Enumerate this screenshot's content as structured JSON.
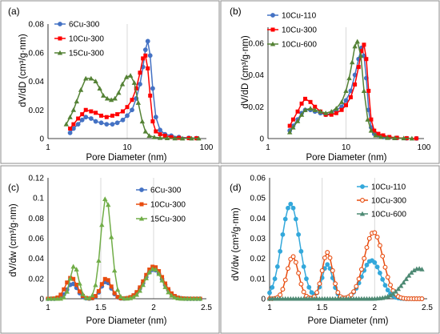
{
  "panels": [
    {
      "label": "(a)",
      "ylabel": "dV/dD (cm³/g·nm)",
      "xlabel": "Pore Diameter (nm)",
      "x_ticks": [
        "1",
        "10",
        "100"
      ],
      "y_ticks": [
        "0",
        "0.02",
        "0.04",
        "0.06",
        "0.08"
      ]
    },
    {
      "label": "(b)",
      "ylabel": "dV/dD (cm³/g·nm)",
      "xlabel": "Pore Diameter (nm)",
      "x_ticks": [
        "1",
        "10",
        "100"
      ],
      "y_ticks": [
        "0",
        "0.02",
        "0.04",
        "0.06"
      ]
    },
    {
      "label": "(c)",
      "ylabel": "dV/dw (cm³/g·nm)",
      "xlabel": "Pore Diameter (nm)",
      "x_ticks": [
        "1",
        "1.5",
        "2",
        "2.5"
      ],
      "y_ticks": [
        "0",
        "0.02",
        "0.04",
        "0.06",
        "0.08",
        "0.1",
        "0.12"
      ]
    },
    {
      "label": "(d)",
      "ylabel": "dV/dw (cm³/g·nm)",
      "xlabel": "Pore Diameter (nm)",
      "x_ticks": [
        "1",
        "1.5",
        "2",
        "2.5"
      ],
      "y_ticks": [
        "0",
        "0.01",
        "0.02",
        "0.03",
        "0.04",
        "0.05",
        "0.06"
      ]
    }
  ],
  "chart_data": [
    {
      "type": "line",
      "x_scale": "log",
      "xlim": [
        1,
        100
      ],
      "ylim": [
        0,
        0.08
      ],
      "grid": "vertical",
      "legend_position": "top-left",
      "series": [
        {
          "name": "6Cu-300",
          "color": "#4472C4",
          "marker": "circle",
          "x": [
            1.9,
            2.1,
            2.4,
            2.7,
            3.0,
            3.5,
            4.0,
            4.7,
            5.5,
            6.5,
            7.5,
            8.8,
            10,
            11.5,
            13,
            14.5,
            15.8,
            17,
            18.2,
            19.5,
            21,
            23,
            26,
            30,
            36,
            45,
            60,
            75
          ],
          "y": [
            0.004,
            0.007,
            0.01,
            0.013,
            0.015,
            0.014,
            0.012,
            0.011,
            0.01,
            0.01,
            0.011,
            0.013,
            0.016,
            0.02,
            0.028,
            0.038,
            0.05,
            0.062,
            0.068,
            0.058,
            0.035,
            0.015,
            0.006,
            0.003,
            0.002,
            0.001,
            0.0005,
            0.0003
          ]
        },
        {
          "name": "10Cu-300",
          "color": "#FF0000",
          "marker": "square",
          "x": [
            1.9,
            2.1,
            2.4,
            2.7,
            3.0,
            3.5,
            4.0,
            4.7,
            5.5,
            6.5,
            7.5,
            8.8,
            10,
            11.5,
            13,
            14.5,
            15.8,
            17,
            18.2,
            19.5,
            21,
            23,
            26,
            30,
            36,
            45,
            60,
            75
          ],
          "y": [
            0.007,
            0.01,
            0.014,
            0.017,
            0.02,
            0.019,
            0.018,
            0.016,
            0.015,
            0.016,
            0.017,
            0.019,
            0.022,
            0.027,
            0.035,
            0.046,
            0.056,
            0.058,
            0.049,
            0.03,
            0.012,
            0.005,
            0.003,
            0.002,
            0.001,
            0.0005,
            0.0003,
            0.0002
          ]
        },
        {
          "name": "15Cu-300",
          "color": "#548235",
          "marker": "triangle",
          "x": [
            1.7,
            1.9,
            2.1,
            2.3,
            2.6,
            3.0,
            3.5,
            4.0,
            4.5,
            5.0,
            5.6,
            6.3,
            7.0,
            7.8,
            8.7,
            9.8,
            11,
            12.3,
            13.8,
            15.5,
            17,
            19,
            22,
            26,
            32,
            40,
            50,
            65,
            80
          ],
          "y": [
            0.01,
            0.015,
            0.02,
            0.026,
            0.034,
            0.042,
            0.042,
            0.04,
            0.035,
            0.03,
            0.028,
            0.027,
            0.028,
            0.032,
            0.038,
            0.043,
            0.044,
            0.039,
            0.025,
            0.012,
            0.005,
            0.002,
            0.001,
            0.0005,
            0.0003,
            0.0002,
            0.0001,
            0.0001,
            0.0001
          ]
        }
      ]
    },
    {
      "type": "line",
      "x_scale": "log",
      "xlim": [
        1,
        100
      ],
      "ylim": [
        0,
        0.07
      ],
      "grid": "vertical",
      "legend_position": "top-left",
      "series": [
        {
          "name": "10Cu-110",
          "color": "#4472C4",
          "marker": "circle",
          "x": [
            1.9,
            2.1,
            2.4,
            2.7,
            3.0,
            3.5,
            4.0,
            4.7,
            5.5,
            6.5,
            7.5,
            8.8,
            10,
            11.5,
            13,
            14.5,
            15.8,
            17,
            18.2,
            19.5,
            21,
            23,
            26,
            30,
            36,
            45,
            60,
            80
          ],
          "y": [
            0.005,
            0.008,
            0.012,
            0.016,
            0.018,
            0.018,
            0.017,
            0.016,
            0.015,
            0.016,
            0.018,
            0.02,
            0.024,
            0.03,
            0.04,
            0.05,
            0.057,
            0.052,
            0.038,
            0.018,
            0.007,
            0.003,
            0.002,
            0.001,
            0.0007,
            0.0004,
            0.0002,
            0.0001
          ]
        },
        {
          "name": "10Cu-300",
          "color": "#FF0000",
          "marker": "square",
          "x": [
            1.9,
            2.1,
            2.4,
            2.7,
            3.0,
            3.5,
            4.0,
            4.7,
            5.5,
            6.5,
            7.5,
            8.8,
            10,
            11.5,
            13,
            14.5,
            15.8,
            17,
            18.2,
            19.5,
            21,
            23,
            26,
            30,
            36,
            45,
            60,
            80
          ],
          "y": [
            0.008,
            0.012,
            0.017,
            0.022,
            0.025,
            0.023,
            0.02,
            0.017,
            0.015,
            0.015,
            0.016,
            0.018,
            0.021,
            0.026,
            0.034,
            0.045,
            0.055,
            0.059,
            0.05,
            0.03,
            0.012,
            0.005,
            0.003,
            0.002,
            0.001,
            0.0005,
            0.0002,
            0.0001
          ]
        },
        {
          "name": "10Cu-600",
          "color": "#548235",
          "marker": "triangle",
          "x": [
            1.9,
            2.1,
            2.4,
            2.7,
            3.0,
            3.5,
            4.0,
            4.7,
            5.5,
            6.5,
            7.5,
            8.8,
            10,
            11,
            12,
            13,
            14,
            15.5,
            17,
            19,
            21,
            24,
            28,
            34,
            42,
            55,
            70
          ],
          "y": [
            0.004,
            0.007,
            0.011,
            0.015,
            0.018,
            0.019,
            0.018,
            0.017,
            0.016,
            0.017,
            0.019,
            0.023,
            0.03,
            0.038,
            0.048,
            0.058,
            0.061,
            0.052,
            0.03,
            0.012,
            0.005,
            0.002,
            0.001,
            0.0005,
            0.0003,
            0.0002,
            0.0001
          ]
        }
      ]
    },
    {
      "type": "line",
      "x_scale": "linear",
      "xlim": [
        1,
        2.5
      ],
      "ylim": [
        0,
        0.12
      ],
      "grid": "vertical",
      "legend_position": "top-right",
      "series": [
        {
          "name": "6Cu-300",
          "color": "#4472C4",
          "marker": "circle",
          "sharp_peak": false,
          "peaks": [
            {
              "center": 1.23,
              "sigma": 0.05,
              "height": 0.015
            },
            {
              "center": 1.55,
              "sigma": 0.05,
              "height": 0.017
            },
            {
              "center": 2.0,
              "sigma": 0.09,
              "height": 0.029
            }
          ],
          "x_start": 1.0,
          "x_end": 2.45,
          "x_step": 0.03
        },
        {
          "name": "10Cu-300",
          "color": "#E84C0F",
          "marker": "square",
          "sharp_peak": false,
          "peaks": [
            {
              "center": 1.22,
              "sigma": 0.055,
              "height": 0.021
            },
            {
              "center": 1.55,
              "sigma": 0.05,
              "height": 0.02
            },
            {
              "center": 2.0,
              "sigma": 0.09,
              "height": 0.032
            }
          ],
          "x_start": 1.0,
          "x_end": 2.45,
          "x_step": 0.03
        },
        {
          "name": "15Cu-300",
          "color": "#70AD47",
          "marker": "triangle",
          "sharp_peak": true,
          "peaks": [
            {
              "center": 1.25,
              "sigma": 0.04,
              "height": 0.033
            },
            {
              "center": 1.55,
              "sigma": 0.05,
              "height": 0.101
            },
            {
              "center": 2.0,
              "sigma": 0.08,
              "height": 0.03
            }
          ],
          "x_start": 1.0,
          "x_end": 2.45,
          "x_step": 0.03
        }
      ]
    },
    {
      "type": "line",
      "x_scale": "linear",
      "xlim": [
        1,
        2.5
      ],
      "ylim": [
        0,
        0.06
      ],
      "grid": "vertical",
      "legend_position": "top-right",
      "series": [
        {
          "name": "10Cu-110",
          "color": "#33A8DB",
          "marker": "circle",
          "sharp_peak": false,
          "peaks": [
            {
              "center": 1.2,
              "sigma": 0.085,
              "height": 0.047
            },
            {
              "center": 1.55,
              "sigma": 0.05,
              "height": 0.017
            },
            {
              "center": 1.97,
              "sigma": 0.09,
              "height": 0.019
            }
          ],
          "x_start": 1.0,
          "x_end": 2.45,
          "x_step": 0.025
        },
        {
          "name": "10Cu-300",
          "color": "#E84C0F",
          "marker": "circle-open",
          "sharp_peak": false,
          "peaks": [
            {
              "center": 1.22,
              "sigma": 0.055,
              "height": 0.021
            },
            {
              "center": 1.55,
              "sigma": 0.05,
              "height": 0.023
            },
            {
              "center": 1.99,
              "sigma": 0.09,
              "height": 0.033
            }
          ],
          "x_start": 1.0,
          "x_end": 2.45,
          "x_step": 0.025
        },
        {
          "name": "10Cu-600",
          "color": "#4E8A74",
          "marker": "triangle",
          "sharp_peak": false,
          "peaks": [
            {
              "center": 2.42,
              "sigma": 0.13,
              "height": 0.015
            }
          ],
          "x_start": 1.0,
          "x_end": 2.45,
          "x_step": 0.025
        }
      ]
    }
  ]
}
